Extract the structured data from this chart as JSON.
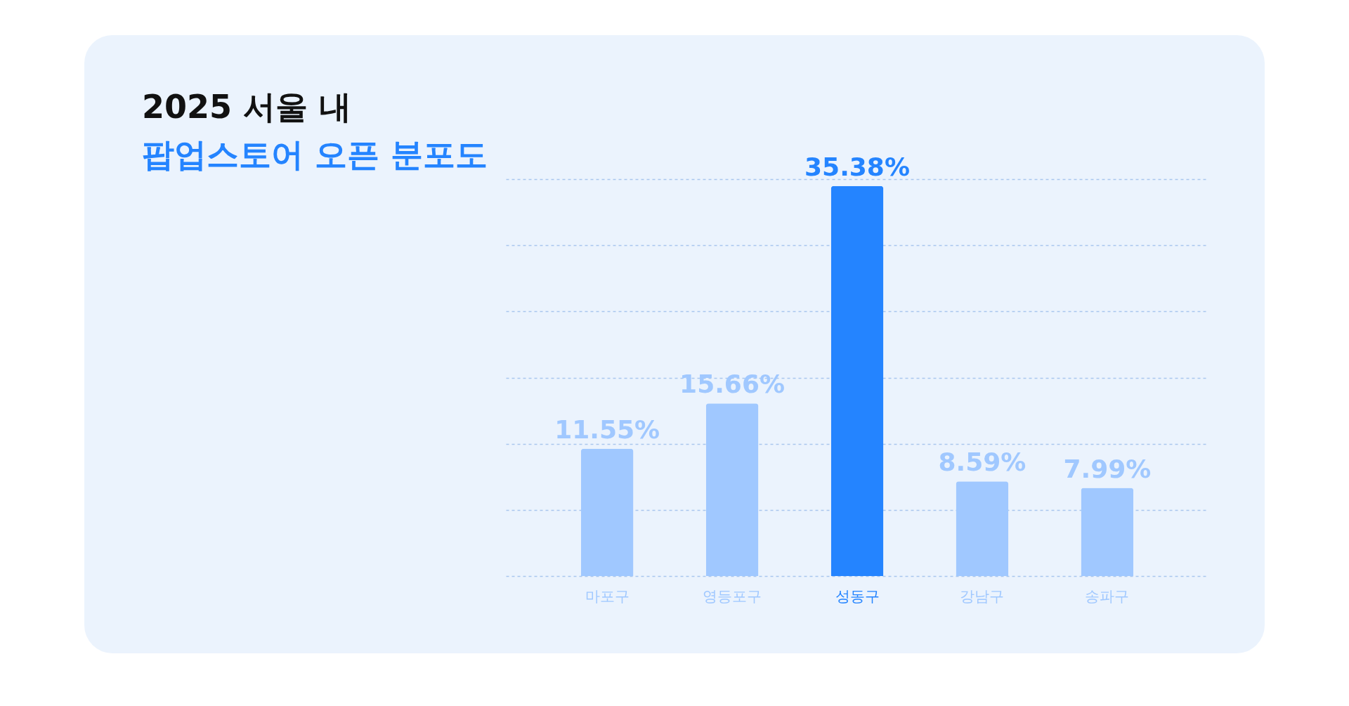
{
  "chart_data": {
    "type": "bar",
    "title": "2025 서울 내",
    "subtitle": "팝업스토어 오픈 분포도",
    "categories": [
      "마포구",
      "영등포구",
      "성동구",
      "강남구",
      "송파구"
    ],
    "values": [
      11.55,
      15.66,
      35.38,
      8.59,
      7.99
    ],
    "colors": [
      "#a0c8ff",
      "#a0c8ff",
      "#2484ff",
      "#a0c8ff",
      "#a0c8ff"
    ],
    "ylim": [
      0,
      36
    ],
    "yticks": [
      {
        "value": 0,
        "label": null
      },
      {
        "value": 6,
        "label": null
      },
      {
        "value": 12,
        "label": null
      },
      {
        "value": 18,
        "label": null
      },
      {
        "value": 24,
        "label": null
      },
      {
        "value": 30,
        "label": null
      },
      {
        "value": 36,
        "label": null
      }
    ],
    "grid": "y",
    "tick_labels": "x",
    "value_labels": [
      "11.55%",
      "15.66%",
      "35.38%",
      "8.59%",
      "7.99%"
    ]
  }
}
